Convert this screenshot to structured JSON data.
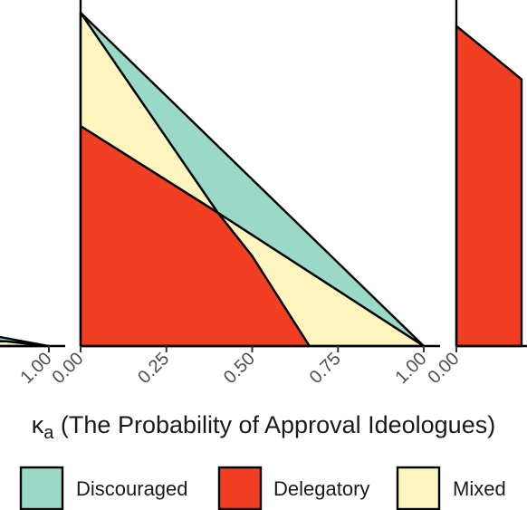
{
  "chart_data": {
    "type": "area",
    "title": "",
    "xlabel": {
      "symbol": "κ",
      "subscript": "a",
      "text": " (The Probability of Approval Ideologues)"
    },
    "ylabel": "",
    "xlim": [
      0,
      1
    ],
    "ylim": [
      0,
      1
    ],
    "grid": false,
    "legend_position": "bottom",
    "legend": [
      {
        "key": "discouraged",
        "label": "Discouraged",
        "color": "#9ad9c8"
      },
      {
        "key": "delegatory",
        "label": "Delegatory",
        "color": "#f23e22"
      },
      {
        "key": "mixed",
        "label": "Mixed",
        "color": "#fdf5bd"
      }
    ],
    "panels": [
      {
        "id": "left",
        "partial": true,
        "x_ticks": [
          1.0
        ],
        "x_tick_labels": [
          "1.00"
        ],
        "regions": [
          {
            "key": "mixed",
            "points": [
              [
                0.55,
                0.025
              ],
              [
                0.9,
                0.014
              ],
              [
                1.0,
                0.0
              ],
              [
                0.55,
                0.0
              ]
            ]
          },
          {
            "key": "discouraged",
            "points": [
              [
                0.55,
                0.105
              ],
              [
                1.0,
                0.0
              ],
              [
                0.9,
                0.014
              ],
              [
                0.55,
                0.025
              ]
            ]
          }
        ]
      },
      {
        "id": "center",
        "x_ticks": [
          0.0,
          0.25,
          0.5,
          0.75,
          1.0
        ],
        "x_tick_labels": [
          "0.00",
          "0.25",
          "0.50",
          "0.75",
          "1.00"
        ],
        "regions": [
          {
            "key": "delegatory",
            "points": [
              [
                0.0,
                0.0
              ],
              [
                0.0,
                0.66
              ],
              [
                0.4,
                0.4
              ],
              [
                0.5,
                0.27
              ],
              [
                0.667,
                0.0
              ]
            ]
          },
          {
            "key": "mixed",
            "points": [
              [
                0.0,
                0.66
              ],
              [
                0.0,
                1.0
              ],
              [
                0.4,
                0.4
              ]
            ]
          },
          {
            "key": "mixed",
            "points": [
              [
                0.4,
                0.4
              ],
              [
                1.0,
                0.0
              ],
              [
                0.667,
                0.0
              ],
              [
                0.5,
                0.27
              ]
            ]
          },
          {
            "key": "discouraged",
            "points": [
              [
                0.0,
                1.0
              ],
              [
                0.4,
                0.4
              ],
              [
                1.0,
                0.0
              ]
            ]
          }
        ]
      },
      {
        "id": "right",
        "partial": true,
        "x_ticks": [
          0.0
        ],
        "x_tick_labels": [
          "0.00"
        ],
        "regions": [
          {
            "key": "delegatory",
            "points": [
              [
                0.0,
                0.0
              ],
              [
                0.0,
                0.96
              ],
              [
                0.19,
                0.8
              ],
              [
                0.19,
                0.0
              ]
            ]
          }
        ]
      }
    ]
  }
}
